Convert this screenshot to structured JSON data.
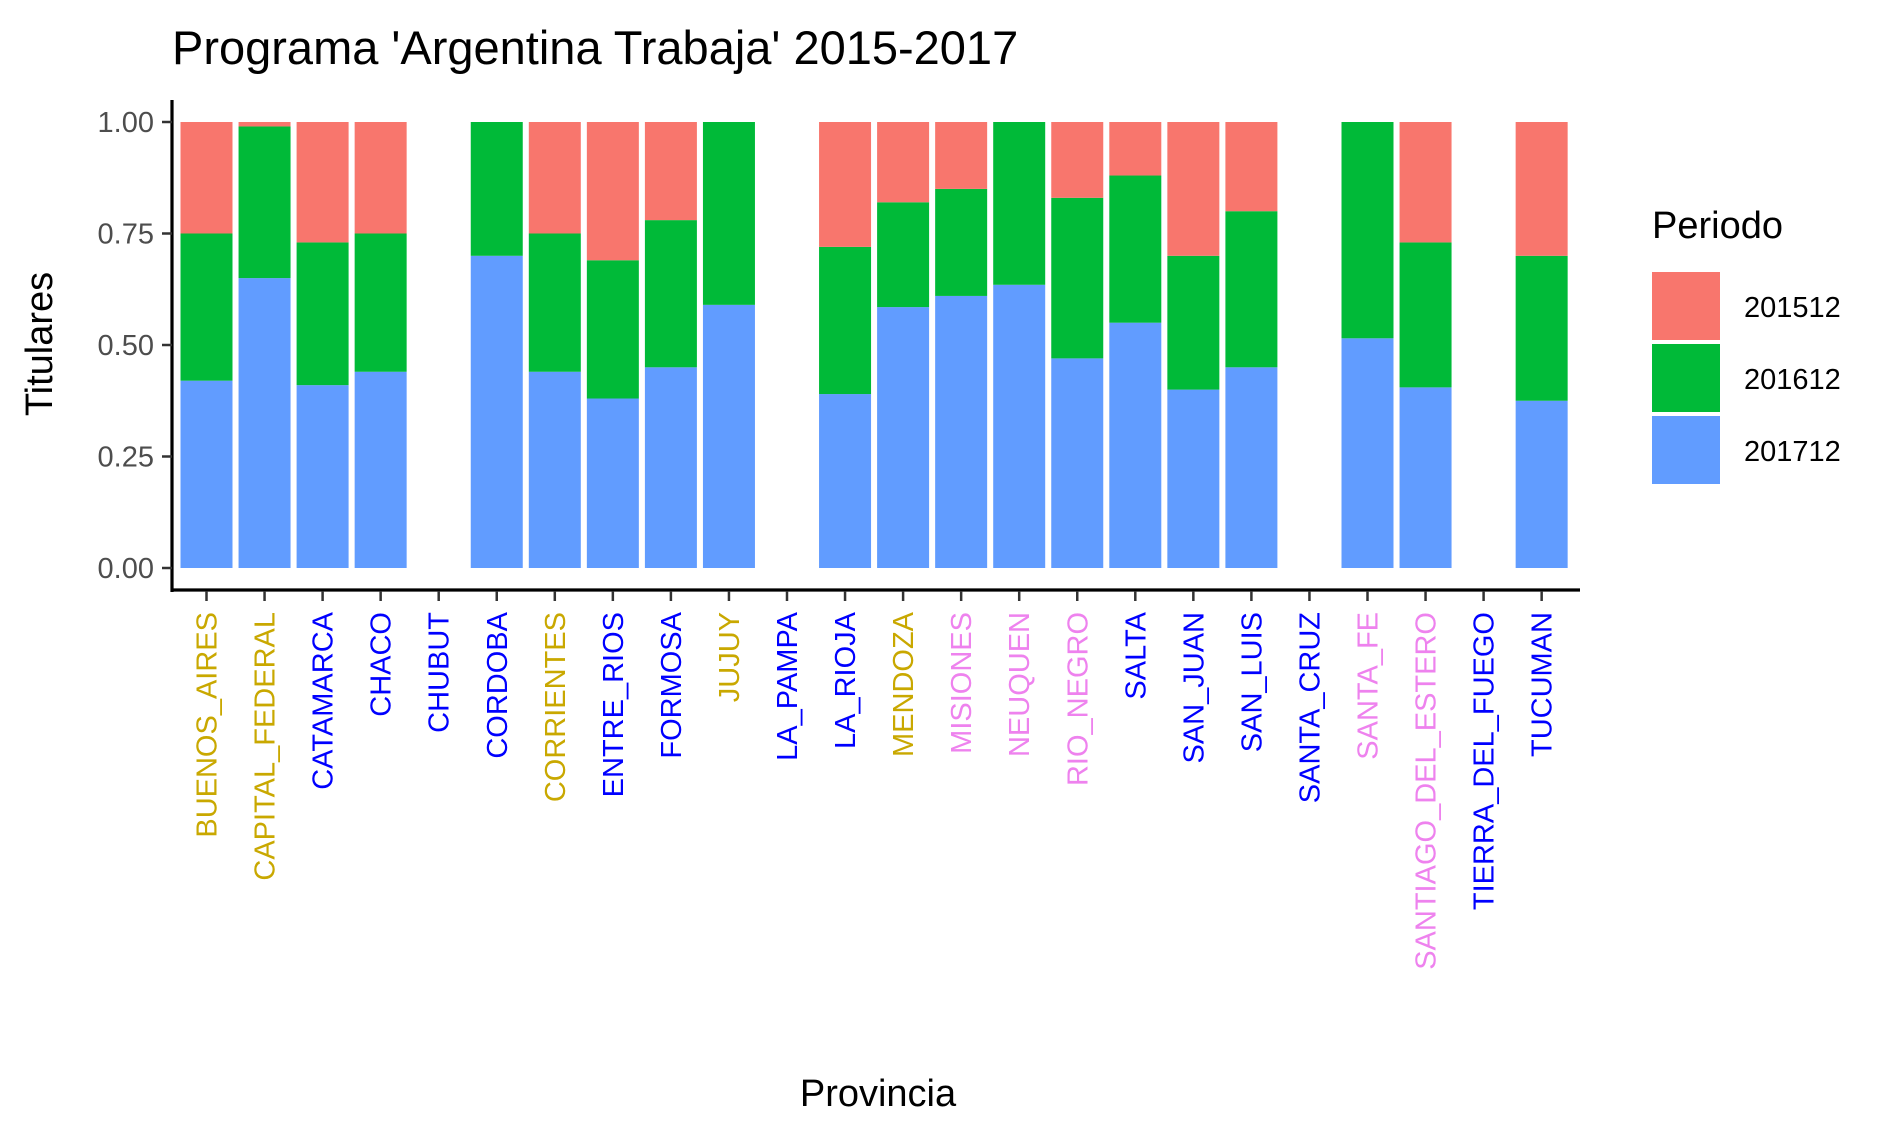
{
  "chart_data": {
    "type": "bar",
    "stacked": true,
    "normalized": true,
    "title": "Programa 'Argentina Trabaja' 2015-2017",
    "xlabel": "Provincia",
    "ylabel": "Titulares",
    "ylim": [
      0,
      1
    ],
    "yticks": [
      "0.00",
      "0.25",
      "0.50",
      "0.75",
      "1.00"
    ],
    "ytick_values": [
      0,
      0.25,
      0.5,
      0.75,
      1
    ],
    "grid": false,
    "legend": {
      "title": "Periodo",
      "placement": "right",
      "entries": [
        {
          "label": "201512",
          "color": "#F8766D"
        },
        {
          "label": "201612",
          "color": "#00BA38"
        },
        {
          "label": "201712",
          "color": "#619CFF"
        }
      ]
    },
    "categories": [
      "BUENOS_AIRES",
      "CAPITAL_FEDERAL",
      "CATAMARCA",
      "CHACO",
      "CHUBUT",
      "CORDOBA",
      "CORRIENTES",
      "ENTRE_RIOS",
      "FORMOSA",
      "JUJUY",
      "LA_PAMPA",
      "LA_RIOJA",
      "MENDOZA",
      "MISIONES",
      "NEUQUEN",
      "RIO_NEGRO",
      "SALTA",
      "SAN_JUAN",
      "SAN_LUIS",
      "SANTA_CRUZ",
      "SANTA_FE",
      "SANTIAGO_DEL_ESTERO",
      "TIERRA_DEL_FUEGO",
      "TUCUMAN"
    ],
    "category_colors": [
      "#C9A800",
      "#C9A800",
      "#0000FF",
      "#0000FF",
      "#0000FF",
      "#0000FF",
      "#C9A800",
      "#0000FF",
      "#0000FF",
      "#C9A800",
      "#0000FF",
      "#0000FF",
      "#C9A800",
      "#EE82EE",
      "#EE82EE",
      "#EE82EE",
      "#0000FF",
      "#0000FF",
      "#0000FF",
      "#0000FF",
      "#EE82EE",
      "#EE82EE",
      "#0000FF",
      "#0000FF"
    ],
    "series": [
      {
        "name": "201512",
        "color": "#F8766D",
        "values": [
          0.25,
          0.01,
          0.27,
          0.25,
          null,
          0,
          0.25,
          0.31,
          0.22,
          0,
          null,
          0.28,
          0.18,
          0.15,
          0,
          0.17,
          0.12,
          0.3,
          0.2,
          null,
          0,
          0.27,
          null,
          0.3
        ]
      },
      {
        "name": "201612",
        "color": "#00BA38",
        "values": [
          0.33,
          0.34,
          0.32,
          0.31,
          null,
          0.3,
          0.31,
          0.31,
          0.33,
          0.41,
          null,
          0.33,
          0.235,
          0.24,
          0.365,
          0.36,
          0.33,
          0.3,
          0.35,
          null,
          0.485,
          0.325,
          null,
          0.325
        ]
      },
      {
        "name": "201712",
        "color": "#619CFF",
        "values": [
          0.42,
          0.65,
          0.41,
          0.44,
          null,
          0.7,
          0.44,
          0.38,
          0.45,
          0.59,
          null,
          0.39,
          0.585,
          0.61,
          0.635,
          0.47,
          0.55,
          0.4,
          0.45,
          null,
          0.515,
          0.405,
          null,
          0.375
        ]
      }
    ]
  }
}
